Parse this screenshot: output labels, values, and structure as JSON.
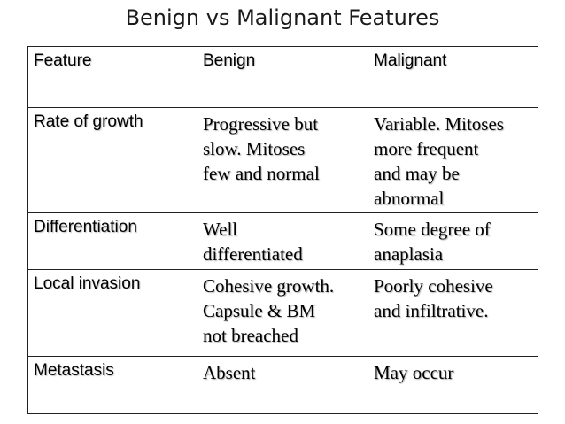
{
  "title": "Benign vs Malignant Features",
  "columns": [
    "Feature",
    "Benign",
    "Malignant"
  ],
  "rows": [
    {
      "feature": "Rate of growth",
      "benign": [
        "Progressive but",
        "slow. Mitoses",
        "few and normal"
      ],
      "malignant": [
        "Variable. Mitoses",
        "more frequent",
        "and may be",
        "abnormal"
      ]
    },
    {
      "feature": "Differentiation",
      "benign": [
        "Well",
        "differentiated"
      ],
      "malignant": [
        "Some degree of",
        "anaplasia"
      ]
    },
    {
      "feature": "Local invasion",
      "benign": [
        "Cohesive growth.",
        "Capsule & BM",
        "not breached"
      ],
      "malignant": [
        "Poorly cohesive",
        "and infiltrative."
      ]
    },
    {
      "feature": "Metastasis",
      "benign": [
        "Absent"
      ],
      "malignant": [
        "May occur"
      ]
    }
  ]
}
